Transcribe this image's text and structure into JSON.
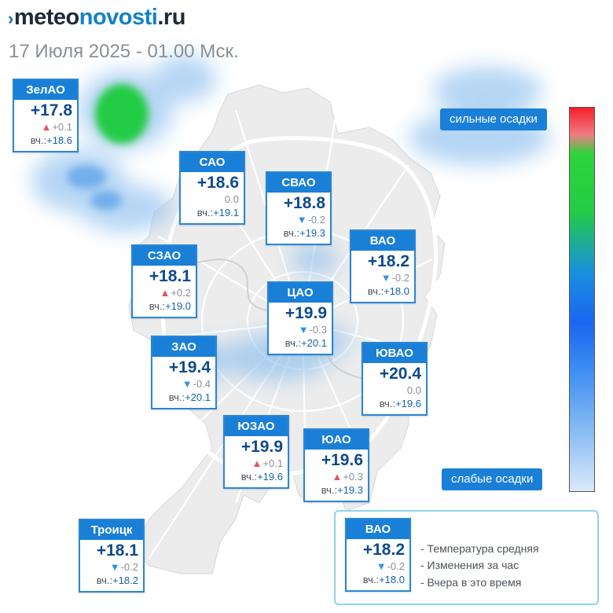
{
  "header": {
    "logo_prefix": "meteo",
    "logo_mid": "novosti",
    "logo_suffix": ".ru",
    "date": "17 Июля 2025 - 01.00 Мск."
  },
  "districts": [
    {
      "name": "ЗелАО",
      "temp": "+17.8",
      "trend": "up",
      "change": "+0.1",
      "yesterday_label": "вч.:",
      "yesterday": "+18.6"
    },
    {
      "name": "САО",
      "temp": "+18.6",
      "trend": "none",
      "change": "0.0",
      "yesterday_label": "вч.:",
      "yesterday": "+19.1"
    },
    {
      "name": "СВАО",
      "temp": "+18.8",
      "trend": "down",
      "change": "-0.2",
      "yesterday_label": "вч.:",
      "yesterday": "+19.3"
    },
    {
      "name": "ВАО",
      "temp": "+18.2",
      "trend": "down",
      "change": "-0.2",
      "yesterday_label": "вч.:",
      "yesterday": "+18.0"
    },
    {
      "name": "СЗАО",
      "temp": "+18.1",
      "trend": "up",
      "change": "+0.2",
      "yesterday_label": "вч.:",
      "yesterday": "+19.0"
    },
    {
      "name": "ЦАО",
      "temp": "+19.9",
      "trend": "down",
      "change": "-0.3",
      "yesterday_label": "вч.:",
      "yesterday": "+20.1"
    },
    {
      "name": "ЗАО",
      "temp": "+19.4",
      "trend": "down",
      "change": "-0.4",
      "yesterday_label": "вч.:",
      "yesterday": "+20.1"
    },
    {
      "name": "ЮВАО",
      "temp": "+20.4",
      "trend": "none",
      "change": "0.0",
      "yesterday_label": "вч.:",
      "yesterday": "+19.6"
    },
    {
      "name": "ЮЗАО",
      "temp": "+19.9",
      "trend": "up",
      "change": "+0.1",
      "yesterday_label": "вч.:",
      "yesterday": "+19.6"
    },
    {
      "name": "ЮАО",
      "temp": "+19.6",
      "trend": "up",
      "change": "+0.3",
      "yesterday_label": "вч.:",
      "yesterday": "+19.3"
    },
    {
      "name": "Троицк",
      "temp": "+18.1",
      "trend": "down",
      "change": "-0.2",
      "yesterday_label": "вч.:",
      "yesterday": "+18.2"
    }
  ],
  "scale": {
    "top_label": "сильные осадки",
    "bottom_label": "слабые осадки",
    "colors": [
      "#f41f2b",
      "#2fd33b",
      "#1a66f0",
      "#dbe9fa"
    ]
  },
  "legend": {
    "card": {
      "name": "ВАО",
      "temp": "+18.2",
      "trend": "down",
      "change": "-0.2",
      "yesterday_label": "вч.:",
      "yesterday": "+18.0"
    },
    "items": [
      "- Температура средняя",
      "- Изменения за час",
      "- Вчера в это время"
    ]
  },
  "colors": {
    "accent": "#1a7fd7",
    "temp_text": "#104a8c",
    "trend_up": "#e5535f",
    "trend_down": "#3590e4"
  }
}
